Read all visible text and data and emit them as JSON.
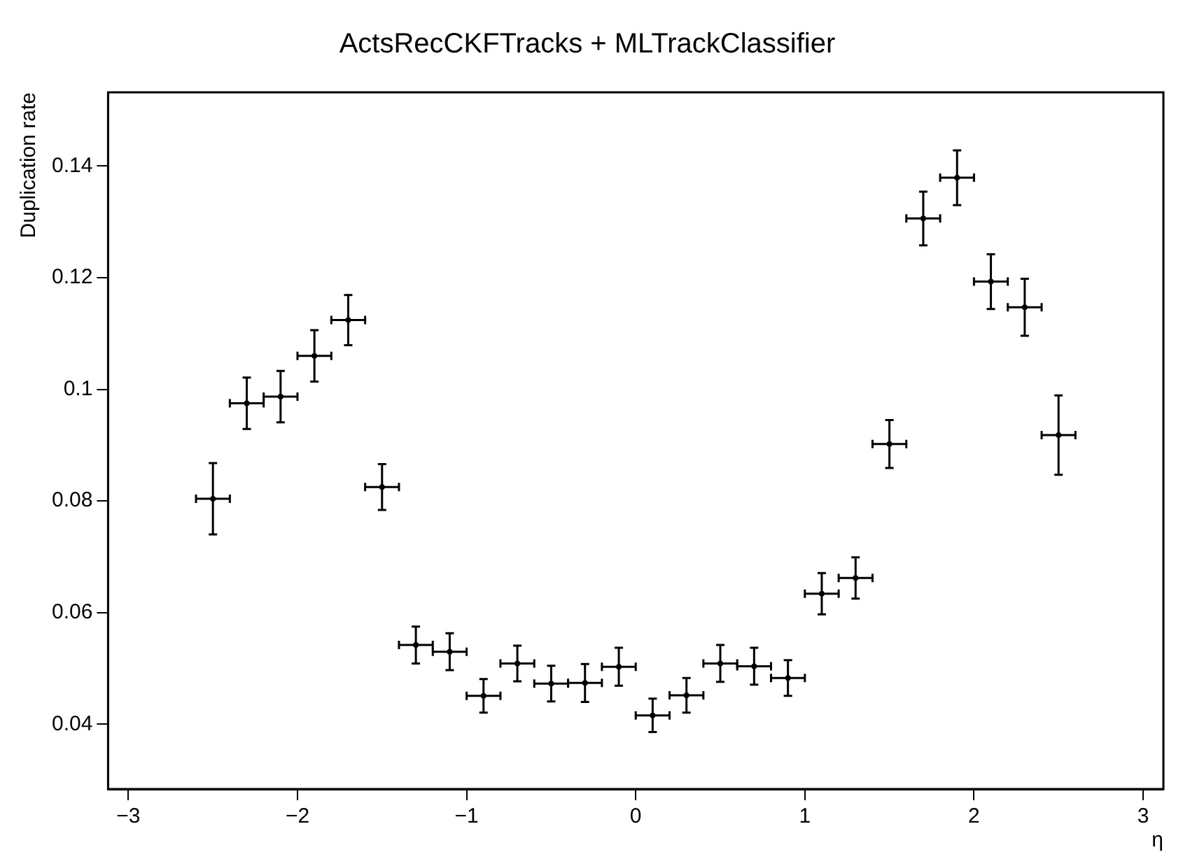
{
  "chart_data": {
    "type": "scatter",
    "title": "ActsRecCKFTracks + MLTrackClassifier",
    "xlabel": "η",
    "ylabel": "Duplication rate",
    "color": "#000000",
    "x": [
      -2.5,
      -2.3,
      -2.1,
      -1.9,
      -1.7,
      -1.5,
      -1.3,
      -1.1,
      -0.9,
      -0.7,
      -0.5,
      -0.3,
      -0.1,
      0.1,
      0.3,
      0.5,
      0.7,
      0.9,
      1.1,
      1.3,
      1.5,
      1.7,
      1.9,
      2.1,
      2.3,
      2.5
    ],
    "values": [
      0.0804,
      0.0975,
      0.0987,
      0.106,
      0.1124,
      0.0825,
      0.0542,
      0.053,
      0.0451,
      0.0509,
      0.0473,
      0.0474,
      0.0503,
      0.0416,
      0.0452,
      0.0509,
      0.0504,
      0.0483,
      0.0634,
      0.0662,
      0.0902,
      0.1306,
      0.1379,
      0.1193,
      0.1147,
      0.0918
    ],
    "errors": [
      0.0064,
      0.0046,
      0.0046,
      0.0046,
      0.0045,
      0.0041,
      0.0033,
      0.0033,
      0.003,
      0.0032,
      0.0032,
      0.0034,
      0.0034,
      0.003,
      0.0031,
      0.0033,
      0.0033,
      0.0032,
      0.0037,
      0.0037,
      0.0043,
      0.0048,
      0.0049,
      0.0049,
      0.0051,
      0.0071
    ],
    "xerrors": [
      0.1,
      0.1,
      0.1,
      0.1,
      0.1,
      0.1,
      0.1,
      0.1,
      0.1,
      0.1,
      0.1,
      0.1,
      0.1,
      0.1,
      0.1,
      0.1,
      0.1,
      0.1,
      0.1,
      0.1,
      0.1,
      0.1,
      0.1,
      0.1,
      0.1,
      0.1
    ],
    "xlim": [
      -3.12,
      3.12
    ],
    "ylim": [
      0.0284,
      0.1532
    ],
    "xticks": [
      -3,
      -2,
      -1,
      0,
      1,
      2,
      3
    ],
    "yticks": [
      0.04,
      0.06,
      0.08,
      0.1,
      0.12,
      0.14
    ]
  }
}
